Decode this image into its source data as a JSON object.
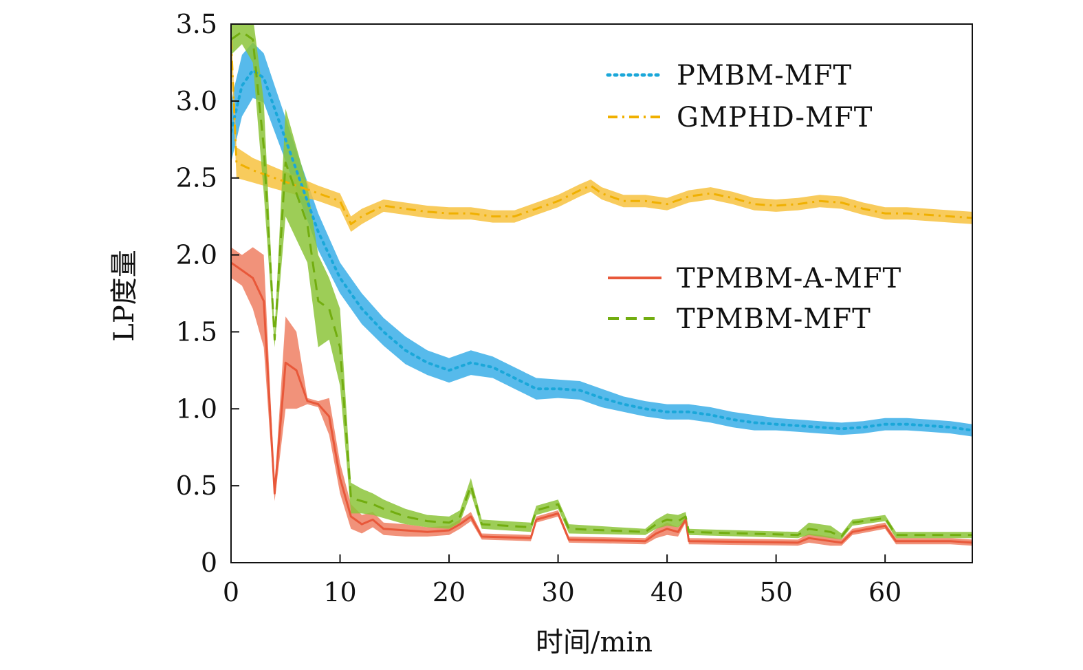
{
  "chart_data": {
    "type": "line",
    "xlabel": "时间/min",
    "ylabel": "LP度量",
    "xlim": [
      0,
      68
    ],
    "ylim": [
      0,
      3.5
    ],
    "xticks": [
      0,
      10,
      20,
      30,
      40,
      50,
      60
    ],
    "yticks": [
      0,
      0.5,
      1.0,
      1.5,
      2.0,
      2.5,
      3.0,
      3.5
    ],
    "ytick_labels": [
      "0",
      "0.5",
      "1.0",
      "1.5",
      "2.0",
      "2.5",
      "3.0",
      "3.5"
    ],
    "grid": false,
    "legend_groups": [
      {
        "placement": "upper-right",
        "entries": [
          "PMBM-MFT",
          "GMPHD-MFT"
        ]
      },
      {
        "placement": "middle-right",
        "entries": [
          "TPMBM-A-MFT",
          "TPMBM-MFT"
        ]
      }
    ],
    "series": [
      {
        "name": "PMBM-MFT",
        "line_style": "dotted",
        "color": "#1aa7d9",
        "band_color": "#3aaee8",
        "x": [
          0,
          1,
          2,
          3,
          4,
          6,
          8,
          10,
          12,
          14,
          16,
          18,
          20,
          22,
          24,
          26,
          28,
          30,
          32,
          34,
          36,
          38,
          40,
          42,
          44,
          46,
          48,
          50,
          52,
          54,
          56,
          58,
          60,
          62,
          64,
          66,
          68
        ],
        "y": [
          2.8,
          3.1,
          3.2,
          3.15,
          2.95,
          2.55,
          2.15,
          1.85,
          1.65,
          1.5,
          1.38,
          1.3,
          1.25,
          1.3,
          1.27,
          1.2,
          1.13,
          1.13,
          1.12,
          1.07,
          1.03,
          1.0,
          0.98,
          0.98,
          0.96,
          0.93,
          0.91,
          0.9,
          0.89,
          0.88,
          0.87,
          0.88,
          0.9,
          0.9,
          0.89,
          0.88,
          0.86
        ],
        "band_halfwidth": [
          0.2,
          0.2,
          0.18,
          0.16,
          0.15,
          0.13,
          0.12,
          0.1,
          0.1,
          0.09,
          0.09,
          0.08,
          0.08,
          0.08,
          0.07,
          0.07,
          0.07,
          0.06,
          0.06,
          0.06,
          0.05,
          0.05,
          0.05,
          0.05,
          0.05,
          0.05,
          0.05,
          0.04,
          0.04,
          0.04,
          0.04,
          0.04,
          0.04,
          0.04,
          0.04,
          0.04,
          0.04
        ]
      },
      {
        "name": "GMPHD-MFT",
        "line_style": "dashdot",
        "color": "#f0b000",
        "band_color": "#f7c240",
        "x": [
          0,
          0.5,
          2,
          4,
          6,
          8,
          10,
          11,
          12,
          14,
          16,
          18,
          20,
          22,
          24,
          26,
          28,
          30,
          32,
          33,
          34,
          36,
          38,
          40,
          42,
          44,
          46,
          48,
          50,
          52,
          54,
          56,
          58,
          60,
          62,
          64,
          66,
          68
        ],
        "y": [
          3.4,
          2.6,
          2.55,
          2.5,
          2.45,
          2.4,
          2.35,
          2.2,
          2.25,
          2.32,
          2.3,
          2.28,
          2.27,
          2.27,
          2.25,
          2.25,
          2.3,
          2.35,
          2.42,
          2.45,
          2.4,
          2.35,
          2.35,
          2.33,
          2.38,
          2.4,
          2.37,
          2.33,
          2.32,
          2.33,
          2.35,
          2.34,
          2.3,
          2.27,
          2.27,
          2.26,
          2.25,
          2.24
        ],
        "band_halfwidth": [
          0.12,
          0.1,
          0.08,
          0.07,
          0.06,
          0.05,
          0.05,
          0.05,
          0.05,
          0.04,
          0.04,
          0.04,
          0.04,
          0.04,
          0.04,
          0.04,
          0.04,
          0.04,
          0.04,
          0.04,
          0.04,
          0.04,
          0.04,
          0.04,
          0.04,
          0.04,
          0.04,
          0.04,
          0.04,
          0.04,
          0.04,
          0.04,
          0.04,
          0.04,
          0.04,
          0.04,
          0.04,
          0.04
        ]
      },
      {
        "name": "TPMBM-A-MFT",
        "line_style": "solid",
        "color": "#e8583a",
        "band_color": "#ee7f63",
        "x": [
          0,
          1,
          2,
          3,
          4,
          5,
          6,
          7,
          8,
          9,
          10,
          11,
          12,
          13,
          14,
          16,
          18,
          20,
          21,
          22,
          23,
          27.5,
          28,
          30,
          31,
          38,
          39,
          40,
          41,
          41.7,
          42,
          52,
          53,
          55,
          56,
          57,
          60,
          61,
          66,
          68
        ],
        "y": [
          1.95,
          1.9,
          1.85,
          1.7,
          0.45,
          1.3,
          1.25,
          1.05,
          1.03,
          0.95,
          0.55,
          0.3,
          0.25,
          0.28,
          0.22,
          0.21,
          0.2,
          0.21,
          0.25,
          0.3,
          0.17,
          0.16,
          0.28,
          0.32,
          0.15,
          0.14,
          0.19,
          0.22,
          0.2,
          0.28,
          0.14,
          0.13,
          0.16,
          0.14,
          0.13,
          0.2,
          0.24,
          0.14,
          0.14,
          0.13
        ],
        "band_halfwidth": [
          0.1,
          0.1,
          0.2,
          0.3,
          0.05,
          0.3,
          0.25,
          0.02,
          0.02,
          0.12,
          0.1,
          0.08,
          0.06,
          0.05,
          0.04,
          0.04,
          0.03,
          0.03,
          0.03,
          0.03,
          0.02,
          0.02,
          0.02,
          0.02,
          0.02,
          0.02,
          0.03,
          0.04,
          0.03,
          0.02,
          0.02,
          0.02,
          0.03,
          0.03,
          0.02,
          0.02,
          0.02,
          0.02,
          0.02,
          0.02
        ]
      },
      {
        "name": "TPMBM-MFT",
        "line_style": "dashed",
        "color": "#72ad10",
        "band_color": "#8cc43a",
        "x": [
          0,
          1,
          2,
          3,
          4,
          5,
          6,
          7,
          8,
          9,
          10,
          11,
          12,
          13,
          14,
          16,
          18,
          20,
          21,
          22,
          23,
          27.5,
          28,
          30,
          31,
          38,
          39,
          40,
          41,
          41.7,
          42,
          52,
          53,
          55,
          56,
          57,
          60,
          61,
          66,
          68
        ],
        "y": [
          3.4,
          3.45,
          3.4,
          2.7,
          1.45,
          2.6,
          2.4,
          2.2,
          1.7,
          1.65,
          1.4,
          0.42,
          0.4,
          0.38,
          0.35,
          0.3,
          0.27,
          0.26,
          0.3,
          0.5,
          0.25,
          0.23,
          0.34,
          0.38,
          0.22,
          0.2,
          0.25,
          0.28,
          0.27,
          0.3,
          0.2,
          0.18,
          0.22,
          0.2,
          0.17,
          0.26,
          0.29,
          0.18,
          0.18,
          0.18
        ],
        "band_halfwidth": [
          0.1,
          0.08,
          0.15,
          0.3,
          0.05,
          0.35,
          0.3,
          0.25,
          0.3,
          0.2,
          0.25,
          0.1,
          0.08,
          0.07,
          0.06,
          0.05,
          0.04,
          0.04,
          0.04,
          0.05,
          0.03,
          0.03,
          0.03,
          0.03,
          0.03,
          0.02,
          0.03,
          0.04,
          0.04,
          0.03,
          0.02,
          0.02,
          0.04,
          0.04,
          0.02,
          0.02,
          0.02,
          0.02,
          0.02,
          0.02
        ]
      }
    ]
  }
}
